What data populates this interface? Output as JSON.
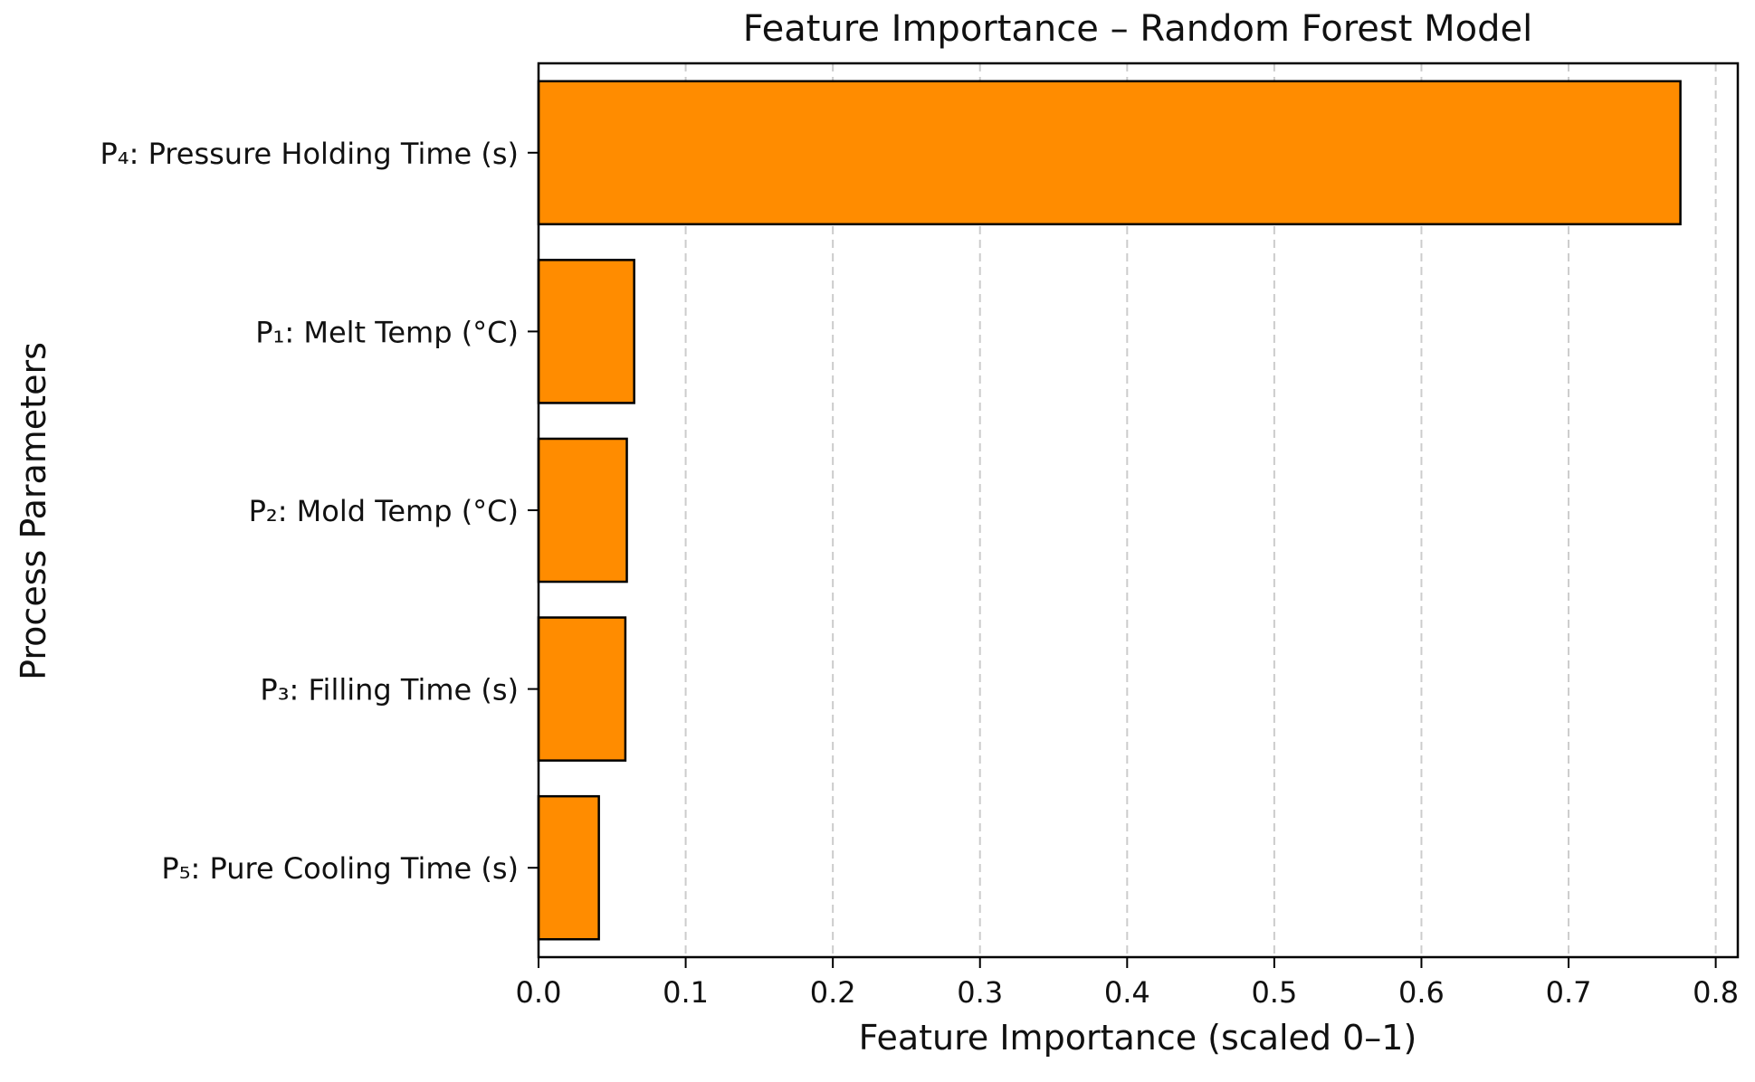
{
  "chart_data": {
    "type": "bar",
    "orientation": "horizontal",
    "title": "Feature Importance – Random Forest Model",
    "xlabel": "Feature Importance (scaled 0–1)",
    "ylabel": "Process Parameters",
    "categories": [
      "P₄: Pressure Holding Time (s)",
      "P₁: Melt Temp (°C)",
      "P₂: Mold Temp (°C)",
      "P₃: Filling Time (s)",
      "P₅: Pure Cooling Time (s)"
    ],
    "values": [
      0.776,
      0.065,
      0.06,
      0.059,
      0.041
    ],
    "xlim": [
      0.0,
      0.815
    ],
    "xticks": [
      "0.0",
      "0.1",
      "0.2",
      "0.3",
      "0.4",
      "0.5",
      "0.6",
      "0.7",
      "0.8"
    ],
    "grid": "x-axis dashed",
    "legend": "none",
    "bar_color": "#ff8c00",
    "bar_edge_color": "#000000",
    "grid_color": "#cccccc"
  }
}
